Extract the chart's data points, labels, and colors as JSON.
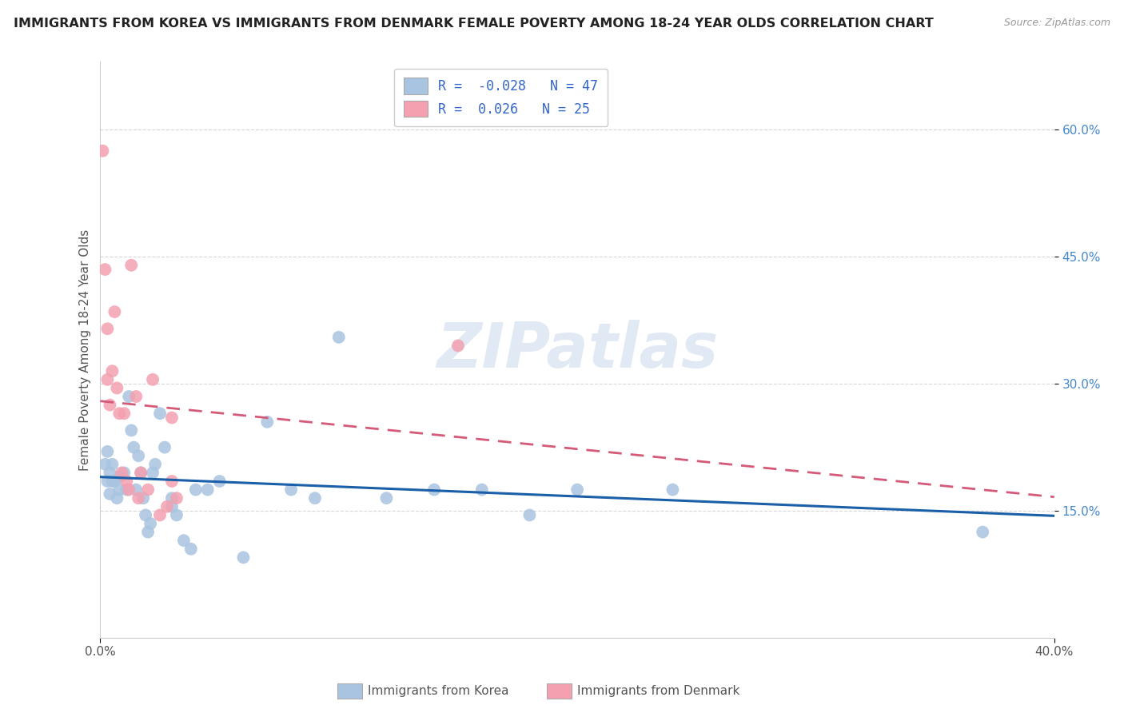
{
  "title": "IMMIGRANTS FROM KOREA VS IMMIGRANTS FROM DENMARK FEMALE POVERTY AMONG 18-24 YEAR OLDS CORRELATION CHART",
  "source": "Source: ZipAtlas.com",
  "ylabel": "Female Poverty Among 18-24 Year Olds",
  "xlim": [
    0.0,
    0.4
  ],
  "ylim": [
    0.0,
    0.68
  ],
  "ytick_positions": [
    0.15,
    0.3,
    0.45,
    0.6
  ],
  "ytick_labels": [
    "15.0%",
    "30.0%",
    "45.0%",
    "60.0%"
  ],
  "korea_R": -0.028,
  "korea_N": 47,
  "denmark_R": 0.026,
  "denmark_N": 25,
  "korea_color": "#a8c4e0",
  "denmark_color": "#f4a0b0",
  "korea_line_color": "#1a5fa8",
  "denmark_line_color": "#d45a78",
  "background_color": "#ffffff",
  "watermark": "ZIPatlas",
  "legend_label_korea": "Immigrants from Korea",
  "legend_label_denmark": "Immigrants from Denmark",
  "korea_x": [
    0.002,
    0.003,
    0.003,
    0.004,
    0.004,
    0.005,
    0.005,
    0.006,
    0.007,
    0.008,
    0.008,
    0.01,
    0.011,
    0.012,
    0.013,
    0.014,
    0.015,
    0.016,
    0.017,
    0.018,
    0.019,
    0.02,
    0.021,
    0.022,
    0.023,
    0.025,
    0.027,
    0.03,
    0.03,
    0.032,
    0.035,
    0.038,
    0.04,
    0.045,
    0.05,
    0.06,
    0.07,
    0.08,
    0.09,
    0.1,
    0.12,
    0.14,
    0.16,
    0.18,
    0.2,
    0.24,
    0.37
  ],
  "korea_y": [
    0.205,
    0.185,
    0.22,
    0.195,
    0.17,
    0.205,
    0.185,
    0.185,
    0.165,
    0.175,
    0.19,
    0.195,
    0.175,
    0.285,
    0.245,
    0.225,
    0.175,
    0.215,
    0.195,
    0.165,
    0.145,
    0.125,
    0.135,
    0.195,
    0.205,
    0.265,
    0.225,
    0.165,
    0.155,
    0.145,
    0.115,
    0.105,
    0.175,
    0.175,
    0.185,
    0.095,
    0.255,
    0.175,
    0.165,
    0.355,
    0.165,
    0.175,
    0.175,
    0.145,
    0.175,
    0.175,
    0.125
  ],
  "denmark_x": [
    0.001,
    0.002,
    0.003,
    0.003,
    0.004,
    0.005,
    0.006,
    0.007,
    0.008,
    0.009,
    0.01,
    0.011,
    0.012,
    0.013,
    0.015,
    0.016,
    0.017,
    0.02,
    0.022,
    0.025,
    0.028,
    0.03,
    0.032,
    0.15,
    0.03
  ],
  "denmark_y": [
    0.575,
    0.435,
    0.365,
    0.305,
    0.275,
    0.315,
    0.385,
    0.295,
    0.265,
    0.195,
    0.265,
    0.185,
    0.175,
    0.44,
    0.285,
    0.165,
    0.195,
    0.175,
    0.305,
    0.145,
    0.155,
    0.185,
    0.165,
    0.345,
    0.26
  ]
}
